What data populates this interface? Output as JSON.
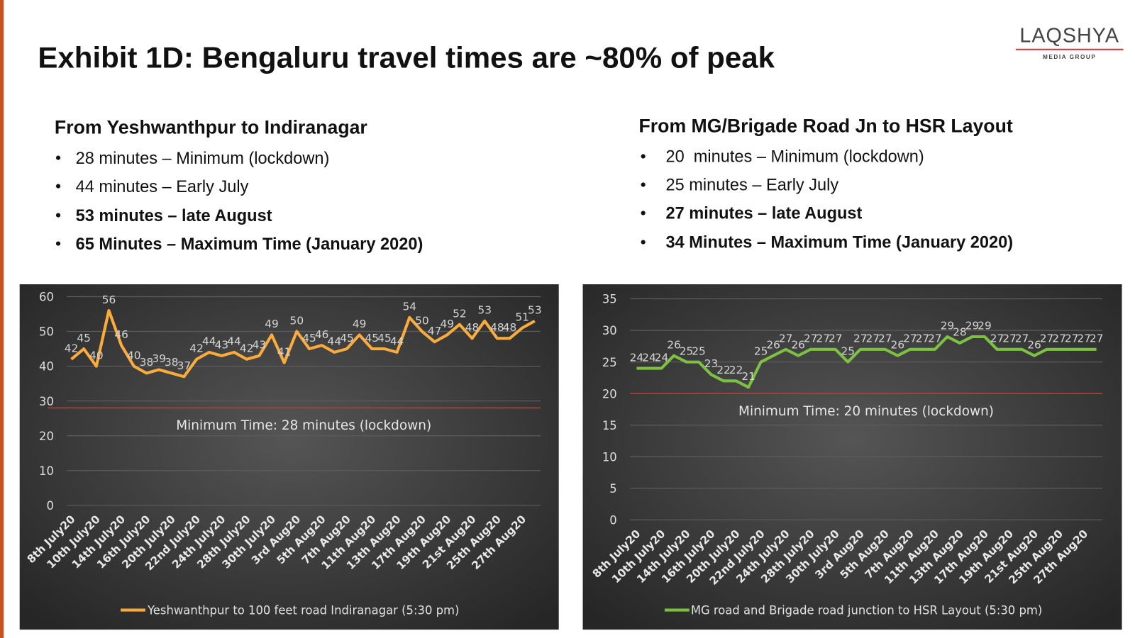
{
  "header": {
    "title": "Exhibit 1D: Bengaluru travel times are ~80% of peak"
  },
  "logo": {
    "name": "LAQSHYA",
    "tagline": "MEDIA GROUP"
  },
  "sections": [
    {
      "heading": "From Yeshwanthpur to Indiranagar",
      "bullets": [
        "28 minutes – Minimum (lockdown)",
        "44 minutes – Early July",
        "53 minutes – late August",
        "65 Minutes – Maximum Time (January 2020)"
      ]
    },
    {
      "heading": "From MG/Brigade Road Jn to HSR Layout",
      "bullets": [
        "20  minutes – Minimum (lockdown)",
        "25 minutes – Early July",
        "27 minutes – late August",
        "34 Minutes – Maximum Time (January 2020)"
      ]
    }
  ],
  "chart_data": [
    {
      "type": "line",
      "categories": [
        "8th July20",
        null,
        "10th July20",
        null,
        "14th July20",
        null,
        "16th July20",
        null,
        "20th July20",
        null,
        "22nd July20",
        null,
        "24th July20",
        null,
        "28th July20",
        null,
        "30th July20",
        null,
        "3rd Aug20",
        null,
        "5th Aug20",
        null,
        "7th Aug20",
        null,
        "11th Aug20",
        null,
        "13th Aug20",
        null,
        "17th Aug20",
        null,
        "19th Aug20",
        null,
        "21st Aug20",
        null,
        "25th Aug20",
        null,
        "27th Aug20",
        null
      ],
      "series": [
        {
          "name": "Yeshwanthpur to 100 feet road Indiranagar (5:30 pm)",
          "color": "#f9ac3d",
          "values": [
            42,
            45,
            40,
            56,
            46,
            40,
            38,
            39,
            38,
            37,
            42,
            44,
            43,
            44,
            42,
            43,
            49,
            41,
            50,
            45,
            46,
            44,
            45,
            49,
            45,
            45,
            44,
            54,
            50,
            47,
            49,
            52,
            48,
            53,
            48,
            48,
            51,
            53
          ]
        }
      ],
      "ylim": [
        0,
        60
      ],
      "yticks": [
        0,
        10,
        20,
        30,
        40,
        50,
        60
      ],
      "grid": true,
      "reference_line": 28,
      "reference_color": "#c0393b",
      "annotation": "Minimum Time: 28 minutes (lockdown)",
      "legend": "bottom"
    },
    {
      "type": "line",
      "categories": [
        "8th July20",
        null,
        "10th July20",
        null,
        "14th July20",
        null,
        "16th July20",
        null,
        "20th July20",
        null,
        "22nd July20",
        null,
        "24th July20",
        null,
        "28th July20",
        null,
        "30th July20",
        null,
        "3rd Aug20",
        null,
        "5th Aug20",
        null,
        "7th Aug20",
        null,
        "11th Aug20",
        null,
        "13th Aug20",
        null,
        "17th Aug20",
        null,
        "19th Aug20",
        null,
        "21st Aug20",
        null,
        "25th Aug20",
        null,
        "27th Aug20",
        null
      ],
      "series": [
        {
          "name": "MG road and Brigade road junction to HSR Layout (5:30 pm)",
          "color": "#7dc142",
          "values": [
            24,
            24,
            24,
            26,
            25,
            25,
            23,
            22,
            22,
            21,
            25,
            26,
            27,
            26,
            27,
            27,
            27,
            25,
            27,
            27,
            27,
            26,
            27,
            27,
            27,
            29,
            28,
            29,
            29,
            27,
            27,
            27,
            26,
            27,
            27,
            27,
            27,
            27
          ]
        }
      ],
      "ylim": [
        0,
        35
      ],
      "yticks": [
        0,
        5,
        10,
        15,
        20,
        25,
        30,
        35
      ],
      "grid": true,
      "reference_line": 20,
      "reference_color": "#c0393b",
      "annotation": "Minimum Time: 20 minutes (lockdown)",
      "legend": "bottom"
    }
  ]
}
